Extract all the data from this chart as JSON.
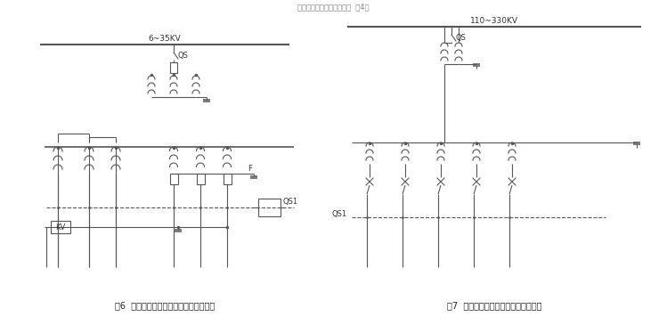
{
  "bg_color": "#ffffff",
  "line_color": "#555555",
  "text_color": "#333333",
  "fig6_label": "图6  非有效接地系统电压互感器接线分析",
  "fig7_label": "图7  有效接地系统电压互感器接线分析",
  "fig6_voltage": "6~35KV",
  "fig7_voltage": "110~330KV",
  "fig6_qs": "QS",
  "fig7_qs": "QS",
  "fig6_qs1": "QS1",
  "fig6_f": "F",
  "fig6_kv": "KV",
  "fig7_qs1": "QS1",
  "header": "电压互感器的接线应用分析  第4张"
}
